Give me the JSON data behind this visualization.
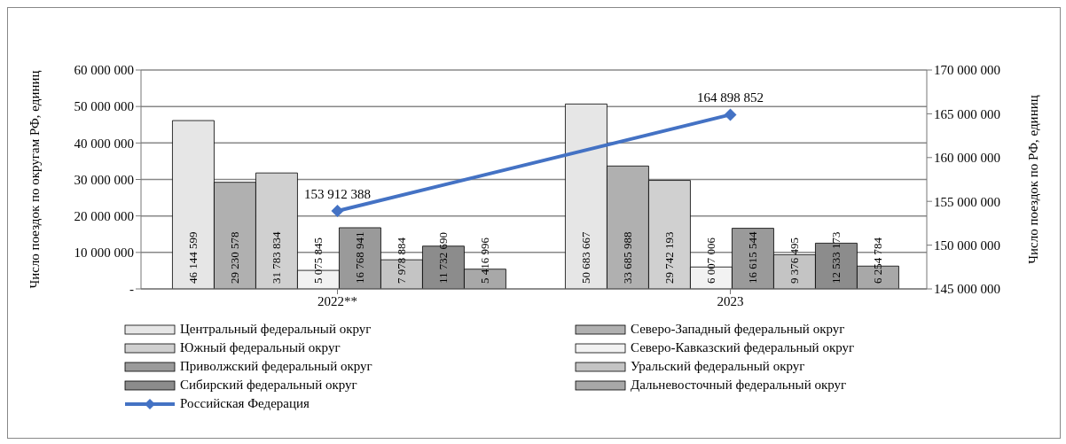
{
  "chart_data": {
    "type": "bar",
    "categories": [
      "2022**",
      "2023"
    ],
    "ylabel": "Число поездок по округам РФ, единиц",
    "y2label": "Число поездок по РФ, единиц",
    "ylim": [
      0,
      60000000
    ],
    "yticks": [
      {
        "value": 0,
        "label": "-"
      },
      10000000,
      20000000,
      30000000,
      40000000,
      50000000,
      60000000
    ],
    "y2lim": [
      145000000,
      170000000
    ],
    "y2ticks": [
      145000000,
      150000000,
      155000000,
      160000000,
      165000000,
      170000000
    ],
    "grid": "y",
    "legend": "bottom",
    "data_labels": true,
    "series": [
      {
        "name": "Центральный федеральный округ",
        "color": "#e6e6e6",
        "values": [
          46144599,
          50683667
        ]
      },
      {
        "name": "Северо-Западный федеральный округ",
        "color": "#b0b0b0",
        "values": [
          29230578,
          33685988
        ]
      },
      {
        "name": "Южный федеральный округ",
        "color": "#d0d0d0",
        "values": [
          31783834,
          29742193
        ]
      },
      {
        "name": "Северо-Кавказский федеральный округ",
        "color": "#f2f2f2",
        "values": [
          5075845,
          6007006
        ]
      },
      {
        "name": "Приволжский федеральный округ",
        "color": "#9a9a9a",
        "values": [
          16768941,
          16615544
        ]
      },
      {
        "name": "Уральский федеральный округ",
        "color": "#c4c4c4",
        "values": [
          7978884,
          9376495
        ]
      },
      {
        "name": "Сибирский федеральный округ",
        "color": "#8c8c8c",
        "values": [
          11732690,
          12533173
        ]
      },
      {
        "name": "Дальневосточный федеральный округ",
        "color": "#a8a8a8",
        "values": [
          5416996,
          6254784
        ]
      },
      {
        "name": "Российская Федерация",
        "color": "#4472c4",
        "type": "line",
        "axis": "y2",
        "marker": "diamond",
        "values": [
          153912388,
          164898852
        ]
      }
    ]
  }
}
